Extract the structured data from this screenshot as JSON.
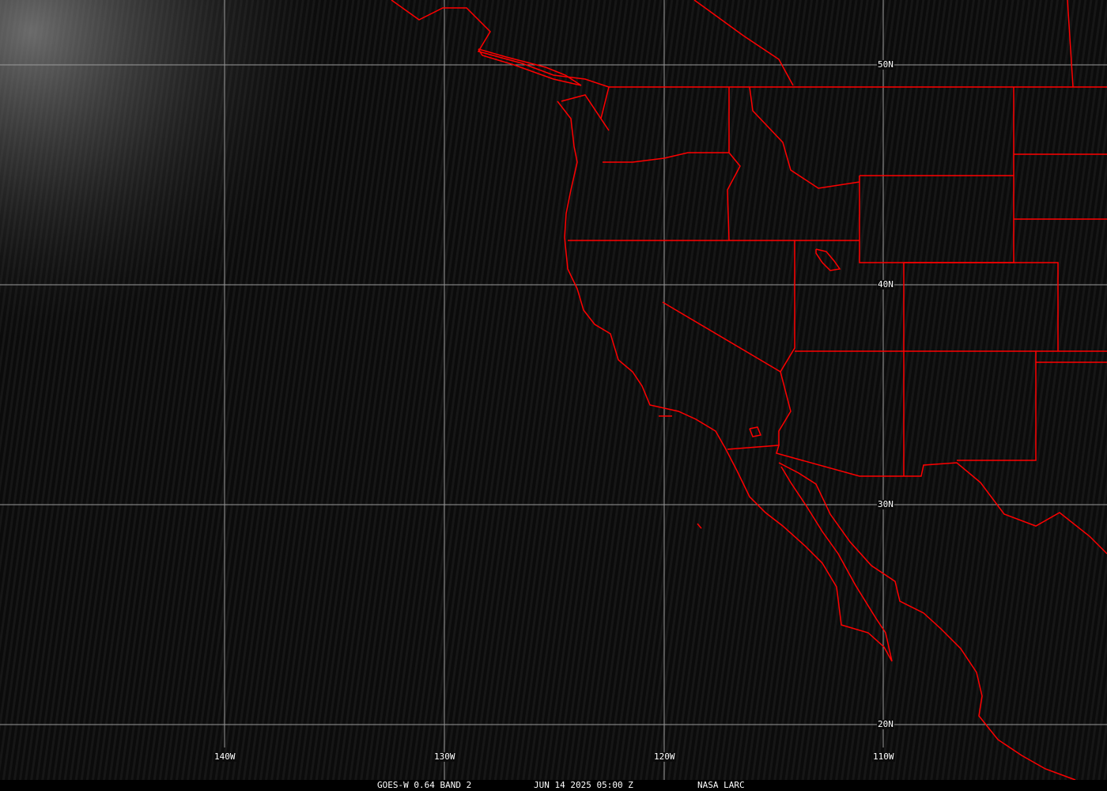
{
  "grid": {
    "lat_labels": [
      "50N",
      "40N",
      "30N",
      "20N"
    ],
    "lon_labels": [
      "140W",
      "130W",
      "120W",
      "110W"
    ],
    "grid_color": "#9a9a9a"
  },
  "boundary_color": "#ff0000",
  "caption": {
    "product": "GOES-W 0.64 BAND 2",
    "datetime": "JUN 14 2025 05:00 Z",
    "source": "NASA LARC"
  }
}
